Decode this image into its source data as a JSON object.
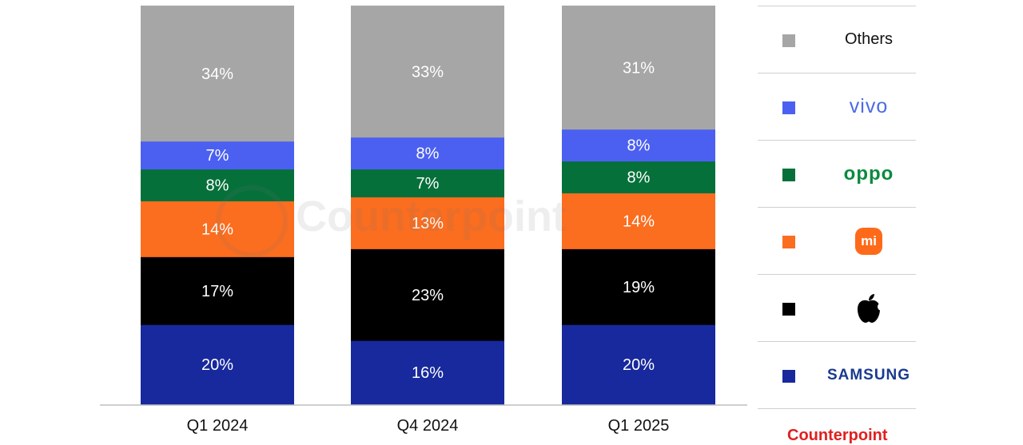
{
  "chart_data": {
    "type": "bar",
    "stacked": true,
    "categories": [
      "Q1 2024",
      "Q4 2024",
      "Q1 2025"
    ],
    "series": [
      {
        "name": "SAMSUNG",
        "color": "#17299c",
        "values": [
          20,
          16,
          20
        ]
      },
      {
        "name": "Apple",
        "color": "#000000",
        "values": [
          17,
          23,
          19
        ]
      },
      {
        "name": "Xiaomi",
        "color": "#fb6d1f",
        "values": [
          14,
          13,
          14
        ]
      },
      {
        "name": "oppo",
        "color": "#06703a",
        "values": [
          8,
          7,
          8
        ]
      },
      {
        "name": "vivo",
        "color": "#4b60f1",
        "values": [
          7,
          8,
          8
        ]
      },
      {
        "name": "Others",
        "color": "#a6a6a6",
        "values": [
          34,
          33,
          31
        ]
      }
    ],
    "labels": [
      [
        "20%",
        "16%",
        "20%"
      ],
      [
        "17%",
        "23%",
        "19%"
      ],
      [
        "14%",
        "13%",
        "14%"
      ],
      [
        "8%",
        "7%",
        "8%"
      ],
      [
        "7%",
        "8%",
        "8%"
      ],
      [
        "34%",
        "33%",
        "31%"
      ]
    ],
    "ylim": [
      0,
      100
    ],
    "grid": false,
    "legend_position": "right"
  },
  "legend": [
    {
      "key": "others",
      "label": "Others",
      "color": "#a6a6a6",
      "icon": "square"
    },
    {
      "key": "vivo",
      "label": "vivo",
      "color": "#4b60f1",
      "icon": "square"
    },
    {
      "key": "oppo",
      "label": "oppo",
      "color": "#06703a",
      "icon": "square"
    },
    {
      "key": "xiaomi",
      "label": "mi",
      "color": "#fb6d1f",
      "icon": "square"
    },
    {
      "key": "apple",
      "label": "",
      "color": "#000000",
      "icon": "apple-icon"
    },
    {
      "key": "samsung",
      "label": "SAMSUNG",
      "color": "#17299c",
      "icon": "square"
    }
  ],
  "watermark": {
    "text": "Counterpoint"
  },
  "footer_logo": {
    "text": "Counterpoint"
  }
}
